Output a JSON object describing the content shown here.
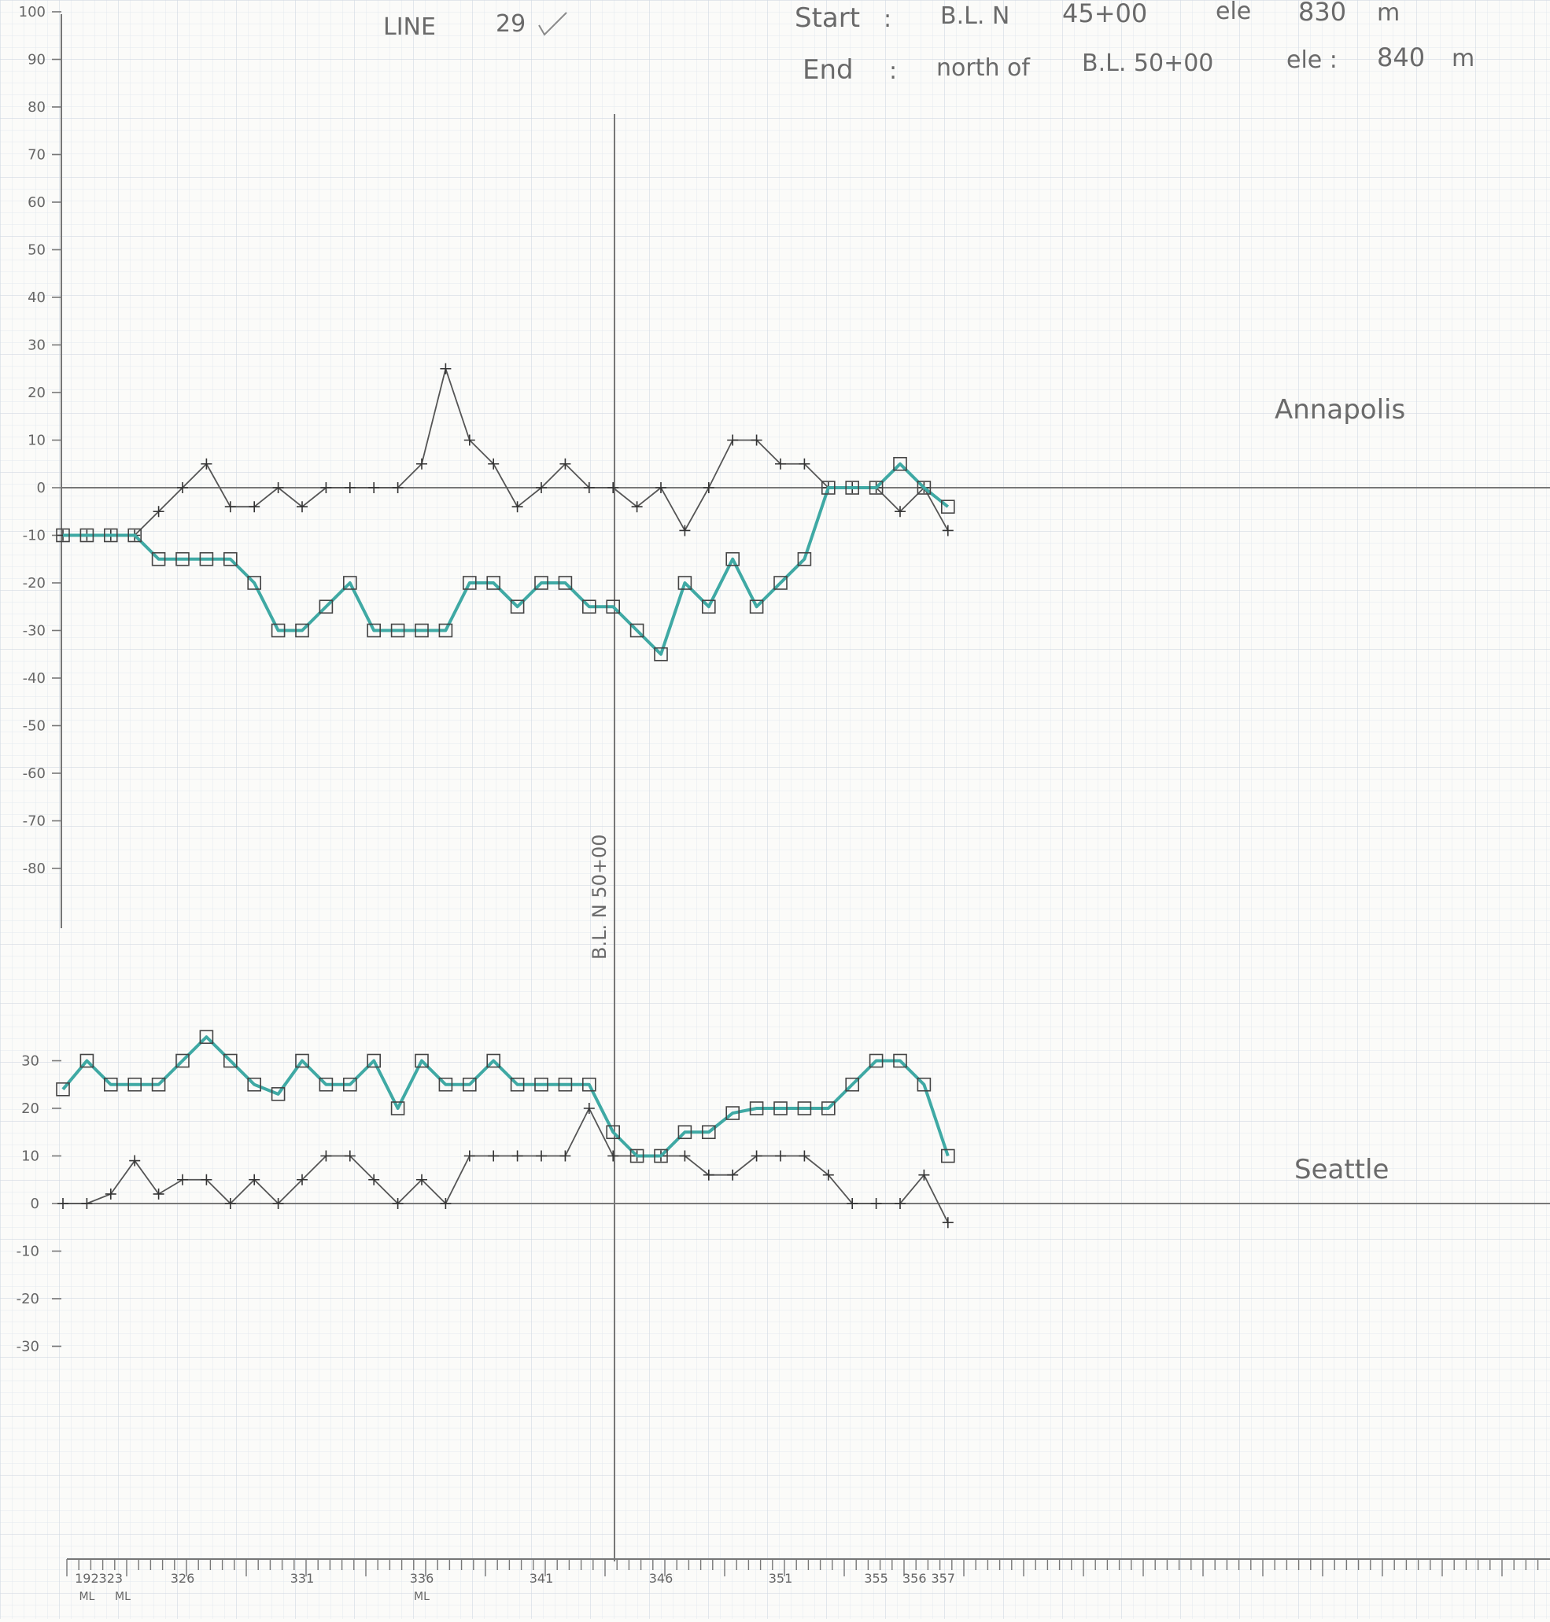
{
  "header": {
    "line_label": "LINE",
    "line_number": "29",
    "start_label": "Start",
    "start_station": "B.L. N",
    "start_chainage": "45+00",
    "start_ele_label": "ele",
    "start_ele_value": "830",
    "start_ele_unit": "m",
    "end_label": "End",
    "end_location": "north of",
    "end_station": "B.L. 50+00",
    "end_ele_label": "ele :",
    "end_ele_value": "840",
    "end_ele_unit": "m"
  },
  "baseline_label": "B.L. N 50+00",
  "chart_data": [
    {
      "type": "line",
      "name": "annapolis-panel",
      "panel_label": "Annapolis",
      "ylim": [
        -80,
        100
      ],
      "yticks": [
        100,
        90,
        80,
        70,
        60,
        50,
        40,
        30,
        20,
        10,
        0,
        -10,
        -20,
        -30,
        -40,
        -50,
        -60,
        -70,
        -80
      ],
      "x_count": 38,
      "colors": {
        "plus_series": "#555555",
        "square_series": "#3fa9a4"
      },
      "series": [
        {
          "marker": "plus",
          "values": [
            -10,
            -10,
            -10,
            -10,
            -5,
            0,
            5,
            -4,
            -4,
            0,
            -4,
            0,
            0,
            0,
            0,
            5,
            25,
            10,
            5,
            -4,
            0,
            5,
            0,
            0,
            -4,
            0,
            -9,
            0,
            10,
            10,
            5,
            5,
            0,
            0,
            0,
            -5,
            0,
            -9
          ]
        },
        {
          "marker": "square",
          "values": [
            -10,
            -10,
            -10,
            -10,
            -15,
            -15,
            -15,
            -15,
            -20,
            -30,
            -30,
            -25,
            -20,
            -30,
            -30,
            -30,
            -30,
            -20,
            -20,
            -25,
            -20,
            -20,
            -25,
            -25,
            -30,
            -35,
            -20,
            -25,
            -15,
            -25,
            -20,
            -15,
            0,
            0,
            0,
            5,
            0,
            -4
          ]
        }
      ]
    },
    {
      "type": "line",
      "name": "seattle-panel",
      "panel_label": "Seattle",
      "ylim": [
        -30,
        30
      ],
      "yticks": [
        30,
        20,
        10,
        0,
        -10,
        -20,
        -30
      ],
      "x_count": 38,
      "colors": {
        "plus_series": "#555555",
        "square_series": "#3fa9a4"
      },
      "series": [
        {
          "marker": "plus",
          "values": [
            0,
            0,
            2,
            9,
            2,
            5,
            5,
            0,
            5,
            0,
            5,
            10,
            10,
            5,
            0,
            5,
            0,
            10,
            10,
            10,
            10,
            10,
            20,
            10,
            10,
            10,
            10,
            6,
            6,
            10,
            10,
            10,
            6,
            0,
            0,
            0,
            6,
            -4
          ]
        },
        {
          "marker": "square",
          "values": [
            24,
            30,
            25,
            25,
            25,
            30,
            35,
            30,
            25,
            23,
            30,
            25,
            25,
            30,
            20,
            30,
            25,
            25,
            30,
            25,
            25,
            25,
            25,
            15,
            10,
            10,
            15,
            15,
            19,
            20,
            20,
            20,
            20,
            25,
            30,
            30,
            25,
            10
          ]
        }
      ]
    }
  ],
  "x_axis": {
    "label_rows": [
      {
        "index": 1,
        "text": "192"
      },
      {
        "index": 2,
        "text": "323"
      },
      {
        "index": 5,
        "text": "326"
      },
      {
        "index": 10,
        "text": "331"
      },
      {
        "index": 15,
        "text": "336"
      },
      {
        "index": 20,
        "text": "341"
      },
      {
        "index": 25,
        "text": "346"
      },
      {
        "index": 30,
        "text": "351"
      },
      {
        "index": 34,
        "text": "355"
      },
      {
        "index": 35.6,
        "text": "356"
      },
      {
        "index": 36.8,
        "text": "357"
      }
    ],
    "sub_labels": [
      {
        "index": 1,
        "text": "ML"
      },
      {
        "index": 2.5,
        "text": "ML"
      },
      {
        "index": 15,
        "text": "ML"
      }
    ]
  }
}
